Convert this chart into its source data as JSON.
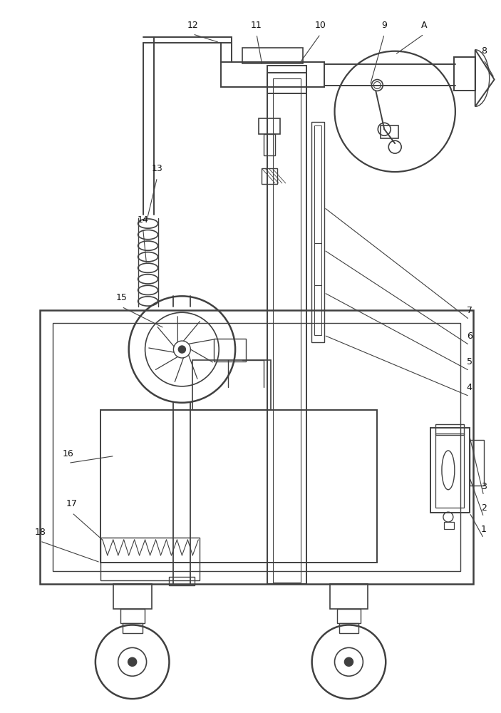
{
  "bg_color": "#ffffff",
  "line_color": "#404040",
  "lw": 1.1,
  "figsize": [
    7.03,
    10.0
  ],
  "dpi": 100,
  "label_fs": 9,
  "label_color": "#111111"
}
